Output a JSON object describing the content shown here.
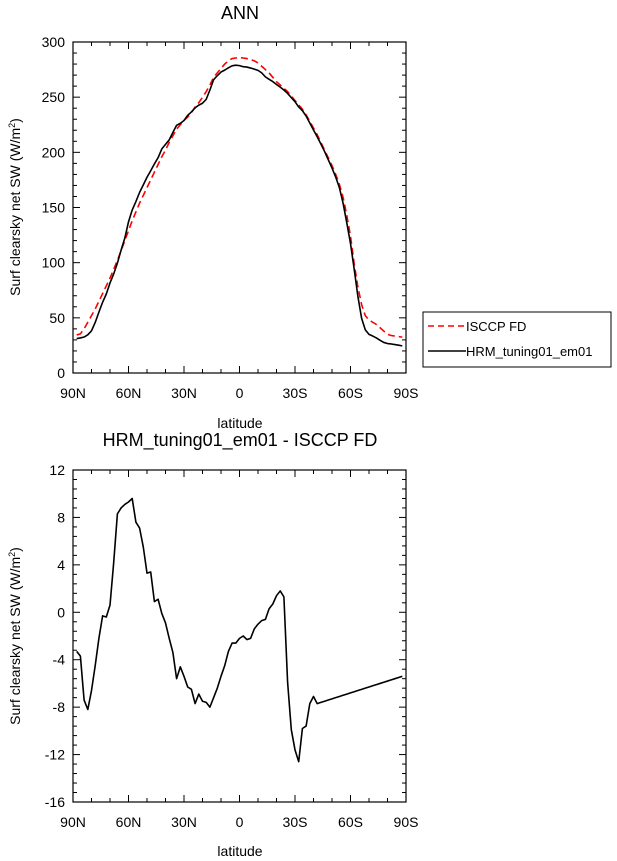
{
  "chart_data": [
    {
      "type": "line",
      "title": "ANN",
      "xlabel": "latitude",
      "ylabel": "Surf clearsky net SW (W/m",
      "ylabel_sup": "2",
      "ylabel_close": ")",
      "xlim": [
        90,
        -90
      ],
      "ylim": [
        0,
        300
      ],
      "x_ticks": [
        90,
        60,
        30,
        0,
        -30,
        -60,
        -90
      ],
      "x_tick_labels": [
        "90N",
        "60N",
        "30N",
        "0",
        "30S",
        "60S",
        "90S"
      ],
      "y_ticks": [
        0,
        50,
        100,
        150,
        200,
        250,
        300
      ],
      "y_tick_labels": [
        "0",
        "50",
        "100",
        "150",
        "200",
        "250",
        "300"
      ],
      "legend_position": "right",
      "series": [
        {
          "name": "ISCCP FD",
          "color": "#ff0000",
          "dash": "dashed",
          "x": [
            88,
            86,
            84,
            82,
            80,
            78,
            76,
            74,
            72,
            70,
            68,
            66,
            64,
            62,
            60,
            58,
            56,
            54,
            52,
            50,
            48,
            46,
            44,
            42,
            40,
            38,
            36,
            34,
            32,
            30,
            28,
            26,
            24,
            22,
            20,
            18,
            16,
            14,
            12,
            10,
            8,
            6,
            4,
            2,
            0,
            -2,
            -4,
            -6,
            -8,
            -10,
            -12,
            -14,
            -16,
            -18,
            -20,
            -22,
            -24,
            -26,
            -28,
            -30,
            -32,
            -34,
            -36,
            -38,
            -40,
            -42,
            -44,
            -46,
            -48,
            -50,
            -52,
            -54,
            -56,
            -58,
            -60,
            -62,
            -64,
            -66,
            -68,
            -70,
            -72,
            -74,
            -76,
            -78,
            -80,
            -82,
            -84,
            -86,
            -88
          ],
          "y": [
            34.5,
            35.5,
            40,
            46,
            52,
            58,
            65,
            72,
            79,
            86,
            94,
            102,
            111,
            120,
            129,
            138,
            146,
            154,
            161,
            168,
            175,
            182,
            189,
            196,
            202,
            209,
            215,
            221,
            225,
            229,
            232,
            236,
            241,
            245,
            250,
            255,
            261,
            268,
            272,
            276,
            280,
            283,
            285,
            285.5,
            286,
            285.5,
            285,
            284,
            283,
            281,
            278,
            275,
            272,
            268,
            264,
            261,
            258,
            255,
            251,
            247,
            243,
            239,
            234,
            228,
            222,
            216,
            209,
            202,
            195,
            188,
            180,
            171,
            159,
            143,
            124,
            99,
            78,
            62,
            52,
            48,
            46,
            44,
            41,
            38,
            35,
            34,
            33.5,
            33,
            32.5
          ]
        },
        {
          "name": "HRM_tuning01_em01",
          "color": "#000000",
          "dash": "solid",
          "x": [
            88,
            86,
            84,
            82,
            80,
            78,
            76,
            74,
            72,
            70,
            68,
            66,
            64,
            62,
            60,
            58,
            56,
            54,
            52,
            50,
            48,
            46,
            44,
            42,
            40,
            38,
            36,
            34,
            32,
            30,
            28,
            26,
            24,
            22,
            20,
            18,
            16,
            14,
            12,
            10,
            8,
            6,
            4,
            2,
            0,
            -2,
            -4,
            -6,
            -8,
            -10,
            -12,
            -14,
            -16,
            -18,
            -20,
            -22,
            -24,
            -26,
            -28,
            -30,
            -32,
            -34,
            -36,
            -38,
            -40,
            -42,
            -44,
            -46,
            -48,
            -50,
            -52,
            -54,
            -56,
            -58,
            -60,
            -62,
            -64,
            -66,
            -68,
            -70,
            -72,
            -74,
            -76,
            -78,
            -80,
            -82,
            -84,
            -86,
            -88
          ],
          "y": [
            31.2,
            31.8,
            32.6,
            34.6,
            38.2,
            45.8,
            55.2,
            64.1,
            71.6,
            81.6,
            89.8,
            99.6,
            111.4,
            122.2,
            137,
            147.7,
            155.4,
            163.7,
            170.5,
            177.4,
            183.3,
            189.5,
            195.2,
            203.1,
            207.2,
            211.3,
            218.1,
            224.5,
            226.3,
            228.9,
            233.5,
            236.6,
            240.3,
            242.8,
            244.5,
            248,
            256.5,
            265.8,
            269.5,
            272.8,
            274.5,
            276.6,
            278.4,
            279,
            278.6,
            277.6,
            277.3,
            276.4,
            275.4,
            274.3,
            272,
            268.4,
            266.2,
            264.1,
            261.5,
            259.1,
            256.5,
            253.4,
            249.6,
            245.9,
            241.1,
            237.8,
            232.9,
            226.6,
            220.2,
            214.1,
            207.5,
            200.7,
            193.2,
            185.7,
            177.6,
            167.9,
            153.8,
            136,
            117.4,
            94,
            69.4,
            49.6,
            39.1,
            35,
            33.5,
            31.8,
            29.6,
            27.7,
            26.7,
            26.3,
            25.8,
            25.2,
            24.6
          ]
        }
      ]
    },
    {
      "type": "line",
      "title": "HRM_tuning01_em01 - ISCCP FD",
      "xlabel": "latitude",
      "ylabel": "Surf clearsky net SW (W/m",
      "ylabel_sup": "2",
      "ylabel_close": ")",
      "xlim": [
        90,
        -90
      ],
      "ylim": [
        -16,
        12
      ],
      "x_ticks": [
        90,
        60,
        30,
        0,
        -30,
        -60,
        -90
      ],
      "x_tick_labels": [
        "90N",
        "60N",
        "30N",
        "0",
        "30S",
        "60S",
        "90S"
      ],
      "y_ticks": [
        -16,
        -12,
        -8,
        -4,
        0,
        4,
        8,
        12
      ],
      "y_tick_labels": [
        "-16",
        "-12",
        "-8",
        "-4",
        "0",
        "4",
        "8",
        "12"
      ],
      "series": [
        {
          "name": "HRM_tuning01_em01 - ISCCP FD",
          "color": "#000000",
          "dash": "solid",
          "x": [
            88,
            86,
            84,
            82,
            80,
            78,
            76,
            74,
            72,
            70,
            68,
            66,
            64,
            62,
            60,
            58,
            56,
            54,
            52,
            50,
            48,
            46,
            44,
            42,
            40,
            38,
            36,
            34,
            32,
            30,
            28,
            26,
            24,
            22,
            20,
            18,
            16,
            14,
            12,
            10,
            8,
            6,
            4,
            2,
            0,
            -2,
            -4,
            -6,
            -8,
            -10,
            -12,
            -14,
            -16,
            -18,
            -20,
            -22,
            -24,
            -26,
            -28,
            -30,
            -32,
            -34,
            -36,
            -38,
            -40,
            -42,
            -44,
            -46,
            -48,
            -50,
            -52,
            -54,
            -56,
            -58,
            -60,
            -62,
            -64,
            -66,
            -68,
            -70,
            -72,
            -74,
            -76,
            -78,
            -80,
            -82,
            -84,
            -86,
            -88
          ],
          "y": [
            -3.3,
            -3.7,
            -7.4,
            -8.2,
            -6.6,
            -4.5,
            -2.2,
            -0.3,
            -0.4,
            0.6,
            4.2,
            8.3,
            8.8,
            9.1,
            9.3,
            9.6,
            7.6,
            7.1,
            5.5,
            3.3,
            3.4,
            0.9,
            1.1,
            -0.1,
            -0.9,
            -2.2,
            -3.4,
            -5.6,
            -4.6,
            -5.4,
            -6.3,
            -6.5,
            -7.7,
            -6.9,
            -7.5,
            -7.6,
            -8,
            -7.2,
            -6.4,
            -5.4,
            -4.5,
            -3.3,
            -2.6,
            -2.6,
            -2.2,
            -2,
            -2.3,
            -2.2,
            -1.4,
            -1,
            -0.7,
            -0.6,
            0.3,
            0.7,
            1.4,
            1.8,
            1.3,
            -5.9,
            -9.9,
            -11.6,
            -12.6,
            -9.8,
            -9.6,
            -7.7,
            -7.1,
            -7.7,
            -7.6,
            -7.5,
            -7.4,
            -7.3,
            -7.2,
            -7.1,
            -7,
            -6.9,
            -6.8,
            -6.7,
            -6.6,
            -6.5,
            -6.4,
            -6.3,
            -6.2,
            -6.1,
            -6,
            -5.9,
            -5.8,
            -5.7,
            -5.6,
            -5.5,
            -5.4
          ]
        }
      ]
    }
  ]
}
